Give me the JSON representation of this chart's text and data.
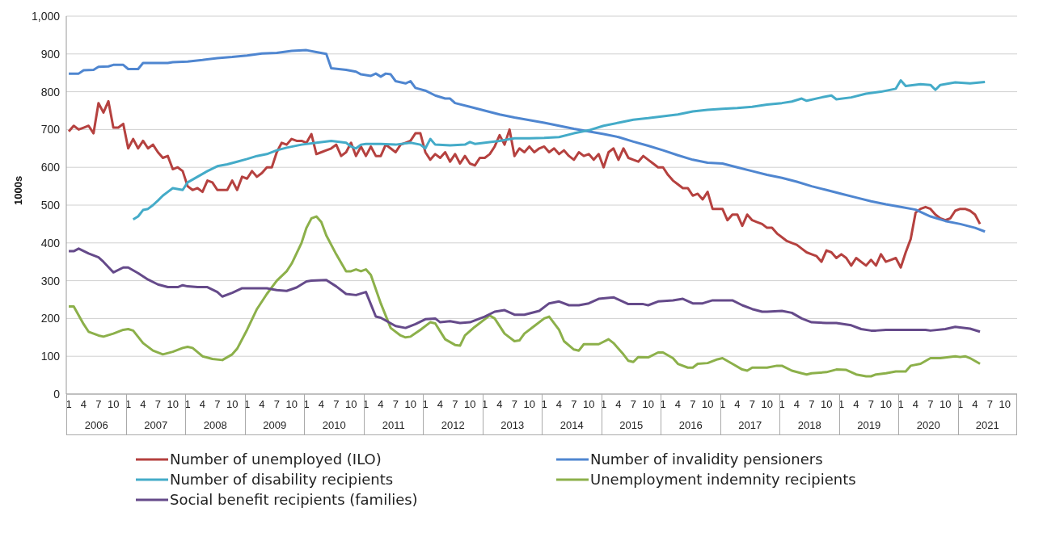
{
  "chart_data": {
    "type": "line",
    "ylabel": "1000s",
    "ylim": [
      0,
      1000
    ],
    "yticks": [
      0,
      100,
      200,
      300,
      400,
      500,
      600,
      700,
      800,
      900,
      {
        "value": 1000,
        "label": "1,000"
      }
    ],
    "grid": "y",
    "legend": "bottom",
    "marker": "none",
    "line_style": "solid",
    "xlim": [
      "2006-01",
      "2021-12"
    ],
    "xticks": [
      {
        "value": "2006-01",
        "label": "1"
      },
      {
        "value": "2006-04",
        "label": "4"
      },
      {
        "value": "2006-07",
        "label": "7"
      },
      {
        "value": "2006-10",
        "label": "10"
      },
      {
        "value": "2007-01",
        "label": "1"
      },
      {
        "value": "2007-04",
        "label": "4"
      },
      {
        "value": "2007-07",
        "label": "7"
      },
      {
        "value": "2007-10",
        "label": "10"
      },
      {
        "value": "2008-01",
        "label": "1"
      },
      {
        "value": "2008-04",
        "label": "4"
      },
      {
        "value": "2008-07",
        "label": "7"
      },
      {
        "value": "2008-10",
        "label": "10"
      },
      {
        "value": "2009-01",
        "label": "1"
      },
      {
        "value": "2009-04",
        "label": "4"
      },
      {
        "value": "2009-07",
        "label": "7"
      },
      {
        "value": "2009-10",
        "label": "10"
      },
      {
        "value": "2010-01",
        "label": "1"
      },
      {
        "value": "2010-04",
        "label": "4"
      },
      {
        "value": "2010-07",
        "label": "7"
      },
      {
        "value": "2010-10",
        "label": "10"
      },
      {
        "value": "2011-01",
        "label": "1"
      },
      {
        "value": "2011-04",
        "label": "4"
      },
      {
        "value": "2011-07",
        "label": "7"
      },
      {
        "value": "2011-10",
        "label": "10"
      },
      {
        "value": "2012-01",
        "label": "1"
      },
      {
        "value": "2012-04",
        "label": "4"
      },
      {
        "value": "2012-07",
        "label": "7"
      },
      {
        "value": "2012-10",
        "label": "10"
      },
      {
        "value": "2013-01",
        "label": "1"
      },
      {
        "value": "2013-04",
        "label": "4"
      },
      {
        "value": "2013-07",
        "label": "7"
      },
      {
        "value": "2013-10",
        "label": "10"
      },
      {
        "value": "2014-01",
        "label": "1"
      },
      {
        "value": "2014-04",
        "label": "4"
      },
      {
        "value": "2014-07",
        "label": "7"
      },
      {
        "value": "2014-10",
        "label": "10"
      },
      {
        "value": "2015-01",
        "label": "1"
      },
      {
        "value": "2015-04",
        "label": "4"
      },
      {
        "value": "2015-07",
        "label": "7"
      },
      {
        "value": "2015-10",
        "label": "10"
      },
      {
        "value": "2016-01",
        "label": "1"
      },
      {
        "value": "2016-04",
        "label": "4"
      },
      {
        "value": "2016-07",
        "label": "7"
      },
      {
        "value": "2016-10",
        "label": "10"
      },
      {
        "value": "2017-01",
        "label": "1"
      },
      {
        "value": "2017-04",
        "label": "4"
      },
      {
        "value": "2017-07",
        "label": "7"
      },
      {
        "value": "2017-10",
        "label": "10"
      },
      {
        "value": "2018-01",
        "label": "1"
      },
      {
        "value": "2018-04",
        "label": "4"
      },
      {
        "value": "2018-07",
        "label": "7"
      },
      {
        "value": "2018-10",
        "label": "10"
      },
      {
        "value": "2019-01",
        "label": "1"
      },
      {
        "value": "2019-04",
        "label": "4"
      },
      {
        "value": "2019-07",
        "label": "7"
      },
      {
        "value": "2019-10",
        "label": "10"
      },
      {
        "value": "2020-01",
        "label": "1"
      },
      {
        "value": "2020-04",
        "label": "4"
      },
      {
        "value": "2020-07",
        "label": "7"
      },
      {
        "value": "2020-10",
        "label": "10"
      },
      {
        "value": "2021-01",
        "label": "1"
      },
      {
        "value": "2021-04",
        "label": "4"
      },
      {
        "value": "2021-07",
        "label": "7"
      },
      {
        "value": "2021-10",
        "label": "10"
      }
    ],
    "annotations": [
      "2006",
      "2007",
      "2008",
      "2009",
      "2010",
      "2011",
      "2012",
      "2013",
      "2014",
      "2015",
      "2016",
      "2017",
      "2018",
      "2019",
      "2020",
      "2021"
    ],
    "series": [
      {
        "name": "Number of unemployed (ILO)",
        "color": "#b5413f",
        "x": [
          "2006-01",
          "2006-02",
          "2006-03",
          "2006-04",
          "2006-05",
          "2006-06",
          "2006-07",
          "2006-08",
          "2006-09",
          "2006-10",
          "2006-11",
          "2006-12",
          "2007-01",
          "2007-02",
          "2007-03",
          "2007-04",
          "2007-05",
          "2007-06",
          "2007-07",
          "2007-08",
          "2007-09",
          "2007-10",
          "2007-11",
          "2007-12",
          "2008-01",
          "2008-02",
          "2008-03",
          "2008-04",
          "2008-05",
          "2008-06",
          "2008-07",
          "2008-08",
          "2008-09",
          "2008-10",
          "2008-11",
          "2008-12",
          "2009-01",
          "2009-02",
          "2009-03",
          "2009-04",
          "2009-05",
          "2009-06",
          "2009-07",
          "2009-08",
          "2009-09",
          "2009-10",
          "2009-11",
          "2009-12",
          "2010-01",
          "2010-02",
          "2010-03",
          "2010-04",
          "2010-05",
          "2010-06",
          "2010-07",
          "2010-08",
          "2010-09",
          "2010-10",
          "2010-11",
          "2010-12",
          "2011-01",
          "2011-02",
          "2011-03",
          "2011-04",
          "2011-05",
          "2011-06",
          "2011-07",
          "2011-08",
          "2011-09",
          "2011-10",
          "2011-11",
          "2011-12",
          "2012-01",
          "2012-02",
          "2012-03",
          "2012-04",
          "2012-05",
          "2012-06",
          "2012-07",
          "2012-08",
          "2012-09",
          "2012-10",
          "2012-11",
          "2012-12",
          "2013-01",
          "2013-02",
          "2013-03",
          "2013-04",
          "2013-05",
          "2013-06",
          "2013-07",
          "2013-08",
          "2013-09",
          "2013-10",
          "2013-11",
          "2013-12",
          "2014-01",
          "2014-02",
          "2014-03",
          "2014-04",
          "2014-05",
          "2014-06",
          "2014-07",
          "2014-08",
          "2014-09",
          "2014-10",
          "2014-11",
          "2014-12",
          "2015-01",
          "2015-02",
          "2015-03",
          "2015-04",
          "2015-05",
          "2015-06",
          "2015-07",
          "2015-08",
          "2015-09",
          "2015-10",
          "2015-11",
          "2015-12",
          "2016-01",
          "2016-02",
          "2016-03",
          "2016-04",
          "2016-05",
          "2016-06",
          "2016-07",
          "2016-08",
          "2016-09",
          "2016-10",
          "2016-11",
          "2016-12",
          "2017-01",
          "2017-02",
          "2017-03",
          "2017-04",
          "2017-05",
          "2017-06",
          "2017-07",
          "2017-08",
          "2017-09",
          "2017-10",
          "2017-11",
          "2017-12",
          "2018-01",
          "2018-02",
          "2018-03",
          "2018-04",
          "2018-05",
          "2018-06",
          "2018-07",
          "2018-08",
          "2018-09",
          "2018-10",
          "2018-11",
          "2018-12",
          "2019-01",
          "2019-02",
          "2019-03",
          "2019-04",
          "2019-05",
          "2019-06",
          "2019-07",
          "2019-08",
          "2019-09",
          "2019-10",
          "2019-11",
          "2019-12",
          "2020-01",
          "2020-02",
          "2020-03",
          "2020-04",
          "2020-05",
          "2020-06",
          "2020-07",
          "2020-08",
          "2020-09",
          "2020-10",
          "2020-11",
          "2020-12",
          "2021-01",
          "2021-02",
          "2021-03",
          "2021-04",
          "2021-05"
        ],
        "values": [
          695,
          710,
          700,
          705,
          710,
          690,
          770,
          745,
          775,
          705,
          705,
          715,
          650,
          675,
          650,
          670,
          650,
          660,
          640,
          625,
          630,
          595,
          600,
          590,
          550,
          540,
          545,
          535,
          565,
          560,
          540,
          540,
          540,
          565,
          540,
          575,
          570,
          590,
          575,
          585,
          600,
          600,
          640,
          665,
          660,
          675,
          670,
          670,
          665,
          688,
          635,
          640,
          645,
          650,
          660,
          630,
          640,
          665,
          630,
          655,
          630,
          655,
          630,
          630,
          660,
          650,
          640,
          660,
          665,
          670,
          690,
          690,
          640,
          620,
          635,
          625,
          640,
          615,
          635,
          610,
          630,
          610,
          605,
          625,
          625,
          635,
          655,
          685,
          660,
          700,
          630,
          650,
          640,
          655,
          640,
          650,
          655,
          640,
          650,
          635,
          645,
          630,
          620,
          640,
          630,
          635,
          620,
          635,
          600,
          640,
          650,
          620,
          650,
          625,
          620,
          615,
          630,
          620,
          610,
          600,
          600,
          580,
          565,
          555,
          545,
          545,
          525,
          530,
          515,
          535,
          490,
          490,
          490,
          460,
          475,
          475,
          445,
          475,
          460,
          455,
          450,
          440,
          440,
          425,
          415,
          405,
          400,
          395,
          385,
          375,
          370,
          365,
          350,
          380,
          375,
          360,
          370,
          360,
          340,
          360,
          350,
          340,
          355,
          340,
          370,
          350,
          355,
          360,
          335,
          375,
          410,
          480,
          490,
          495,
          490,
          475,
          465,
          460,
          465,
          485,
          490,
          490,
          485,
          475,
          450
        ]
      },
      {
        "name": "Number of invalidity pensioners",
        "color": "#4f86d0",
        "x": [
          "2006-01",
          "2006-03",
          "2006-04",
          "2006-06",
          "2006-07",
          "2006-09",
          "2006-10",
          "2006-12",
          "2007-01",
          "2007-03",
          "2007-04",
          "2007-09",
          "2007-10",
          "2008-01",
          "2008-04",
          "2008-07",
          "2008-10",
          "2009-01",
          "2009-04",
          "2009-07",
          "2009-10",
          "2010-01",
          "2010-03",
          "2010-05",
          "2010-06",
          "2010-09",
          "2010-11",
          "2010-12",
          "2011-02",
          "2011-03",
          "2011-04",
          "2011-05",
          "2011-06",
          "2011-07",
          "2011-09",
          "2011-10",
          "2011-11",
          "2012-01",
          "2012-03",
          "2012-05",
          "2012-06",
          "2012-07",
          "2012-10",
          "2013-01",
          "2013-04",
          "2013-07",
          "2013-10",
          "2014-01",
          "2014-04",
          "2014-07",
          "2014-10",
          "2015-01",
          "2015-04",
          "2015-07",
          "2015-10",
          "2016-01",
          "2016-04",
          "2016-07",
          "2016-10",
          "2017-01",
          "2017-04",
          "2017-07",
          "2017-10",
          "2018-01",
          "2018-04",
          "2018-07",
          "2018-10",
          "2019-01",
          "2019-04",
          "2019-07",
          "2019-10",
          "2020-01",
          "2020-04",
          "2020-07",
          "2020-10",
          "2021-01",
          "2021-04",
          "2021-06"
        ],
        "values": [
          848,
          848,
          857,
          858,
          866,
          867,
          871,
          871,
          860,
          860,
          876,
          876,
          878,
          880,
          884,
          889,
          892,
          896,
          901,
          903,
          908,
          910,
          905,
          900,
          862,
          858,
          853,
          846,
          842,
          848,
          840,
          848,
          846,
          828,
          822,
          828,
          810,
          803,
          790,
          782,
          782,
          770,
          760,
          750,
          740,
          732,
          725,
          718,
          710,
          702,
          695,
          688,
          680,
          668,
          657,
          645,
          632,
          620,
          612,
          610,
          600,
          590,
          580,
          572,
          562,
          550,
          540,
          530,
          520,
          510,
          502,
          495,
          488,
          470,
          458,
          450,
          440,
          430
        ]
      },
      {
        "name": "Number of disability recipients",
        "color": "#44abc8",
        "x": [
          "2007-02",
          "2007-03",
          "2007-04",
          "2007-05",
          "2007-06",
          "2007-07",
          "2007-08",
          "2007-09",
          "2007-10",
          "2007-12",
          "2008-01",
          "2008-03",
          "2008-05",
          "2008-07",
          "2008-09",
          "2008-11",
          "2009-01",
          "2009-03",
          "2009-05",
          "2009-07",
          "2009-09",
          "2009-12",
          "2010-03",
          "2010-06",
          "2010-09",
          "2010-10",
          "2010-11",
          "2010-12",
          "2011-01",
          "2011-04",
          "2011-07",
          "2011-10",
          "2011-12",
          "2012-01",
          "2012-02",
          "2012-03",
          "2012-06",
          "2012-09",
          "2012-10",
          "2012-11",
          "2013-01",
          "2013-04",
          "2013-07",
          "2013-10",
          "2014-01",
          "2014-04",
          "2014-07",
          "2014-10",
          "2015-01",
          "2015-04",
          "2015-07",
          "2015-10",
          "2016-01",
          "2016-04",
          "2016-07",
          "2016-10",
          "2017-01",
          "2017-04",
          "2017-07",
          "2017-10",
          "2018-01",
          "2018-03",
          "2018-05",
          "2018-06",
          "2018-09",
          "2018-11",
          "2018-12",
          "2019-03",
          "2019-06",
          "2019-09",
          "2019-12",
          "2020-01",
          "2020-02",
          "2020-05",
          "2020-07",
          "2020-08",
          "2020-09",
          "2020-12",
          "2021-03",
          "2021-06"
        ],
        "values": [
          462,
          470,
          487,
          490,
          500,
          512,
          525,
          535,
          545,
          540,
          560,
          575,
          590,
          603,
          608,
          615,
          622,
          630,
          635,
          645,
          652,
          660,
          665,
          670,
          665,
          655,
          650,
          660,
          662,
          662,
          660,
          665,
          660,
          650,
          675,
          660,
          658,
          660,
          667,
          662,
          665,
          670,
          677,
          677,
          678,
          680,
          690,
          698,
          710,
          718,
          726,
          730,
          735,
          740,
          748,
          752,
          755,
          757,
          760,
          766,
          770,
          774,
          782,
          776,
          785,
          790,
          780,
          785,
          795,
          800,
          808,
          830,
          815,
          820,
          818,
          805,
          818,
          825,
          822,
          826
        ]
      },
      {
        "name": "Unemployment indemnity recipients",
        "color": "#8cb04a",
        "x": [
          "2006-01",
          "2006-02",
          "2006-04",
          "2006-05",
          "2006-07",
          "2006-08",
          "2006-10",
          "2006-12",
          "2007-01",
          "2007-02",
          "2007-04",
          "2007-06",
          "2007-08",
          "2007-10",
          "2007-12",
          "2008-01",
          "2008-02",
          "2008-04",
          "2008-06",
          "2008-08",
          "2008-10",
          "2008-11",
          "2009-01",
          "2009-03",
          "2009-05",
          "2009-07",
          "2009-09",
          "2009-10",
          "2009-12",
          "2010-01",
          "2010-02",
          "2010-03",
          "2010-04",
          "2010-05",
          "2010-07",
          "2010-09",
          "2010-10",
          "2010-11",
          "2010-12",
          "2011-01",
          "2011-02",
          "2011-04",
          "2011-06",
          "2011-08",
          "2011-09",
          "2011-10",
          "2011-12",
          "2012-02",
          "2012-03",
          "2012-05",
          "2012-07",
          "2012-08",
          "2012-09",
          "2012-11",
          "2013-02",
          "2013-03",
          "2013-05",
          "2013-07",
          "2013-08",
          "2013-09",
          "2013-11",
          "2014-01",
          "2014-02",
          "2014-04",
          "2014-05",
          "2014-07",
          "2014-08",
          "2014-09",
          "2014-12",
          "2015-02",
          "2015-03",
          "2015-05",
          "2015-06",
          "2015-07",
          "2015-08",
          "2015-10",
          "2015-12",
          "2016-01",
          "2016-03",
          "2016-04",
          "2016-06",
          "2016-07",
          "2016-08",
          "2016-10",
          "2016-12",
          "2017-01",
          "2017-03",
          "2017-05",
          "2017-06",
          "2017-07",
          "2017-10",
          "2017-12",
          "2018-01",
          "2018-03",
          "2018-05",
          "2018-06",
          "2018-07",
          "2018-10",
          "2018-12",
          "2019-02",
          "2019-04",
          "2019-06",
          "2019-07",
          "2019-08",
          "2019-10",
          "2019-12",
          "2020-02",
          "2020-03",
          "2020-05",
          "2020-07",
          "2020-09",
          "2020-12",
          "2021-01",
          "2021-02",
          "2021-03",
          "2021-05"
        ],
        "values": [
          232,
          232,
          185,
          165,
          155,
          152,
          160,
          170,
          172,
          168,
          135,
          115,
          105,
          112,
          122,
          125,
          122,
          100,
          93,
          90,
          105,
          120,
          170,
          225,
          265,
          300,
          325,
          345,
          400,
          440,
          465,
          470,
          455,
          420,
          370,
          325,
          325,
          330,
          325,
          330,
          315,
          240,
          175,
          155,
          150,
          152,
          170,
          190,
          187,
          145,
          130,
          128,
          155,
          178,
          208,
          200,
          160,
          140,
          142,
          160,
          180,
          200,
          205,
          170,
          140,
          118,
          115,
          132,
          132,
          145,
          135,
          105,
          88,
          85,
          98,
          97,
          110,
          110,
          95,
          80,
          70,
          70,
          80,
          82,
          92,
          95,
          80,
          65,
          62,
          70,
          70,
          75,
          75,
          62,
          55,
          52,
          55,
          58,
          65,
          64,
          52,
          47,
          47,
          52,
          55,
          60,
          60,
          75,
          80,
          95,
          95,
          100,
          98,
          100,
          95,
          80
        ]
      },
      {
        "name": "Social benefit recipients (families)",
        "color": "#654a8a",
        "x": [
          "2006-01",
          "2006-02",
          "2006-03",
          "2006-05",
          "2006-07",
          "2006-08",
          "2006-10",
          "2006-12",
          "2007-01",
          "2007-03",
          "2007-05",
          "2007-07",
          "2007-09",
          "2007-11",
          "2007-12",
          "2008-01",
          "2008-03",
          "2008-05",
          "2008-07",
          "2008-08",
          "2008-10",
          "2008-12",
          "2009-03",
          "2009-05",
          "2009-07",
          "2009-09",
          "2009-11",
          "2010-01",
          "2010-02",
          "2010-05",
          "2010-07",
          "2010-09",
          "2010-11",
          "2011-01",
          "2011-03",
          "2011-04",
          "2011-07",
          "2011-09",
          "2011-11",
          "2012-01",
          "2012-03",
          "2012-04",
          "2012-06",
          "2012-08",
          "2012-10",
          "2013-01",
          "2013-03",
          "2013-05",
          "2013-07",
          "2013-09",
          "2013-12",
          "2014-02",
          "2014-04",
          "2014-06",
          "2014-08",
          "2014-10",
          "2014-12",
          "2015-03",
          "2015-06",
          "2015-09",
          "2015-10",
          "2015-12",
          "2016-03",
          "2016-05",
          "2016-07",
          "2016-09",
          "2016-11",
          "2017-01",
          "2017-03",
          "2017-05",
          "2017-07",
          "2017-09",
          "2017-10",
          "2018-01",
          "2018-03",
          "2018-05",
          "2018-07",
          "2018-10",
          "2018-12",
          "2019-03",
          "2019-05",
          "2019-07",
          "2019-08",
          "2019-10",
          "2020-01",
          "2020-06",
          "2020-07",
          "2020-10",
          "2020-12",
          "2021-03",
          "2021-05"
        ],
        "values": [
          378,
          378,
          385,
          372,
          362,
          350,
          322,
          335,
          335,
          320,
          303,
          290,
          283,
          283,
          288,
          285,
          283,
          283,
          270,
          258,
          268,
          280,
          280,
          280,
          275,
          273,
          282,
          298,
          300,
          302,
          285,
          265,
          262,
          270,
          205,
          202,
          180,
          175,
          185,
          198,
          200,
          190,
          193,
          188,
          190,
          205,
          218,
          222,
          210,
          210,
          220,
          240,
          245,
          235,
          235,
          240,
          252,
          256,
          238,
          238,
          235,
          245,
          248,
          252,
          240,
          240,
          248,
          248,
          248,
          235,
          225,
          218,
          218,
          220,
          215,
          200,
          190,
          188,
          188,
          182,
          172,
          168,
          168,
          170,
          170,
          170,
          168,
          172,
          178,
          173,
          165
        ]
      }
    ]
  }
}
